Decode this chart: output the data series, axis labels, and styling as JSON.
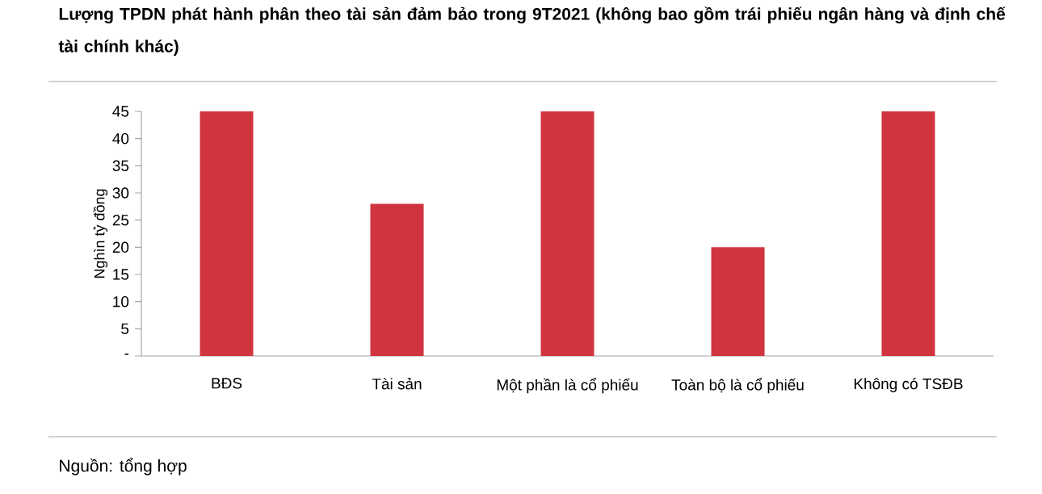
{
  "chart_data": {
    "type": "bar",
    "title": "**Lượng TPDN phát hành phân theo tài sản đảm bảo trong 9T2021 (không bao gồm trái phiếu ngân hàng và định chế tài chính khác)**",
    "ylabel": "Nghìn tỷ đồng",
    "categories": [
      "BĐS",
      "Tài sản",
      "Một phần là cổ phiếu",
      "Toàn bộ là cổ phiếu",
      "Không có TSĐB"
    ],
    "values": [
      45,
      28,
      45,
      20,
      45
    ],
    "color": "#d0343f",
    "ylim": [
      0,
      45
    ],
    "yticks": [
      {
        "value": 0,
        "label": "-"
      },
      5,
      10,
      15,
      20,
      25,
      30,
      35,
      40,
      45
    ],
    "grid": false,
    "annotations": [
      "Nguồn: tổng hợp"
    ]
  }
}
